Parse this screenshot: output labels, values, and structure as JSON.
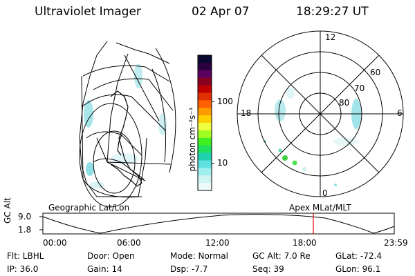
{
  "header": {
    "instrument": "Ultraviolet Imager",
    "date": "02 Apr 07",
    "time": "18:29:27 UT"
  },
  "colorbar": {
    "unit_label": "photon cm⁻²s⁻¹",
    "ticks": [
      "100",
      "10"
    ],
    "colors": [
      "#0a0a30",
      "#2a0040",
      "#5a0060",
      "#8a0020",
      "#c00000",
      "#e03000",
      "#ff6000",
      "#ff9a00",
      "#ffd000",
      "#f0ff40",
      "#a0ff20",
      "#40f020",
      "#20e060",
      "#20d0b0",
      "#60e0e0",
      "#a0eeee",
      "#d0f4f4",
      "#eefafa"
    ]
  },
  "left_panel": {
    "caption": "Geographic Lat/Lon"
  },
  "right_panel": {
    "caption": "Apex MLat/MLT",
    "mlt_labels": {
      "top": "12",
      "left": "18",
      "right": "6",
      "bottom": "0"
    },
    "lat_labels": [
      "60",
      "70",
      "80"
    ]
  },
  "timeline": {
    "ylabel": "GC Alt",
    "yticks": [
      "9.0",
      "1.8"
    ],
    "xticks": [
      "00:00",
      "06:00",
      "12:00",
      "18:00",
      "23:59"
    ],
    "marker_time": "18:29"
  },
  "info": {
    "flt": "Flt: LBHL",
    "ip": "IP: 36.0",
    "door": "Door: Open",
    "gain": "Gain: 14",
    "mode": "Mode: Normal",
    "dsp": "Dsp:   -7.7",
    "gcalt": "GC Alt: 7.0 Re",
    "seq": "Seq: 39",
    "glat": "GLat: -72.4",
    "glon": "GLon:  96.1"
  }
}
